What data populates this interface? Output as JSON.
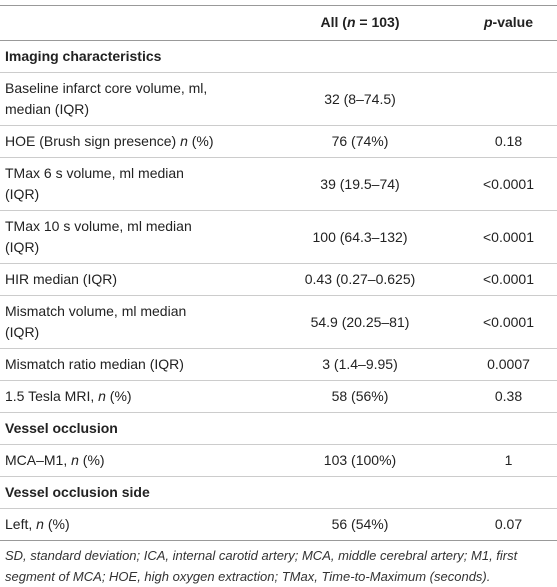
{
  "header": {
    "columns": [
      [
        {
          "text": "All ("
        },
        {
          "text": "n",
          "italic": true
        },
        {
          "text": " = 103)"
        }
      ],
      [
        {
          "text": "p",
          "italic": true
        },
        {
          "text": "-value"
        }
      ]
    ]
  },
  "rows": [
    {
      "section": "Imaging characteristics"
    },
    {
      "label": [
        [
          {
            "text": "Baseline infarct core volume, ml,"
          }
        ],
        [
          {
            "text": "median (IQR)"
          }
        ]
      ],
      "all": "32 (8–74.5)"
    },
    {
      "label": [
        [
          {
            "text": "HOE (Brush sign presence) "
          },
          {
            "text": "n",
            "italic": true
          },
          {
            "text": " (%)"
          }
        ]
      ],
      "all": "76 (74%)",
      "p": "0.18"
    },
    {
      "label": [
        [
          {
            "text": "TMax 6 s volume, ml median"
          }
        ],
        [
          {
            "text": "(IQR)"
          }
        ]
      ],
      "all": "39 (19.5–74)",
      "p": "<0.0001"
    },
    {
      "label": [
        [
          {
            "text": "TMax 10 s volume, ml median"
          }
        ],
        [
          {
            "text": "(IQR)"
          }
        ]
      ],
      "all": "100 (64.3–132)",
      "p": "<0.0001"
    },
    {
      "label": [
        [
          {
            "text": "HIR median (IQR)"
          }
        ]
      ],
      "all": "0.43 (0.27–0.625)",
      "p": "<0.0001"
    },
    {
      "label": [
        [
          {
            "text": "Mismatch volume, ml median"
          }
        ],
        [
          {
            "text": "(IQR)"
          }
        ]
      ],
      "all": "54.9 (20.25–81)",
      "p": "<0.0001"
    },
    {
      "label": [
        [
          {
            "text": "Mismatch ratio median (IQR)"
          }
        ]
      ],
      "all": "3 (1.4–9.95)",
      "p": "0.0007"
    },
    {
      "label": [
        [
          {
            "text": "1.5 Tesla MRI, "
          },
          {
            "text": "n",
            "italic": true
          },
          {
            "text": " (%)"
          }
        ]
      ],
      "all": "58 (56%)",
      "p": "0.38"
    },
    {
      "section": "Vessel occlusion"
    },
    {
      "label": [
        [
          {
            "text": "MCA–M1, "
          },
          {
            "text": "n",
            "italic": true
          },
          {
            "text": " (%)"
          }
        ]
      ],
      "all": "103 (100%)",
      "p": "1"
    },
    {
      "section": "Vessel occlusion side"
    },
    {
      "label": [
        [
          {
            "text": "Left, "
          },
          {
            "text": "n",
            "italic": true
          },
          {
            "text": " (%)"
          }
        ]
      ],
      "all": "56 (54%)",
      "p": "0.07"
    }
  ],
  "footnote": "SD, standard deviation; ICA, internal carotid artery; MCA, middle cerebral artery; M1, first segment of MCA; HOE, high oxygen extraction; TMax, Time-to-Maximum (seconds)."
}
